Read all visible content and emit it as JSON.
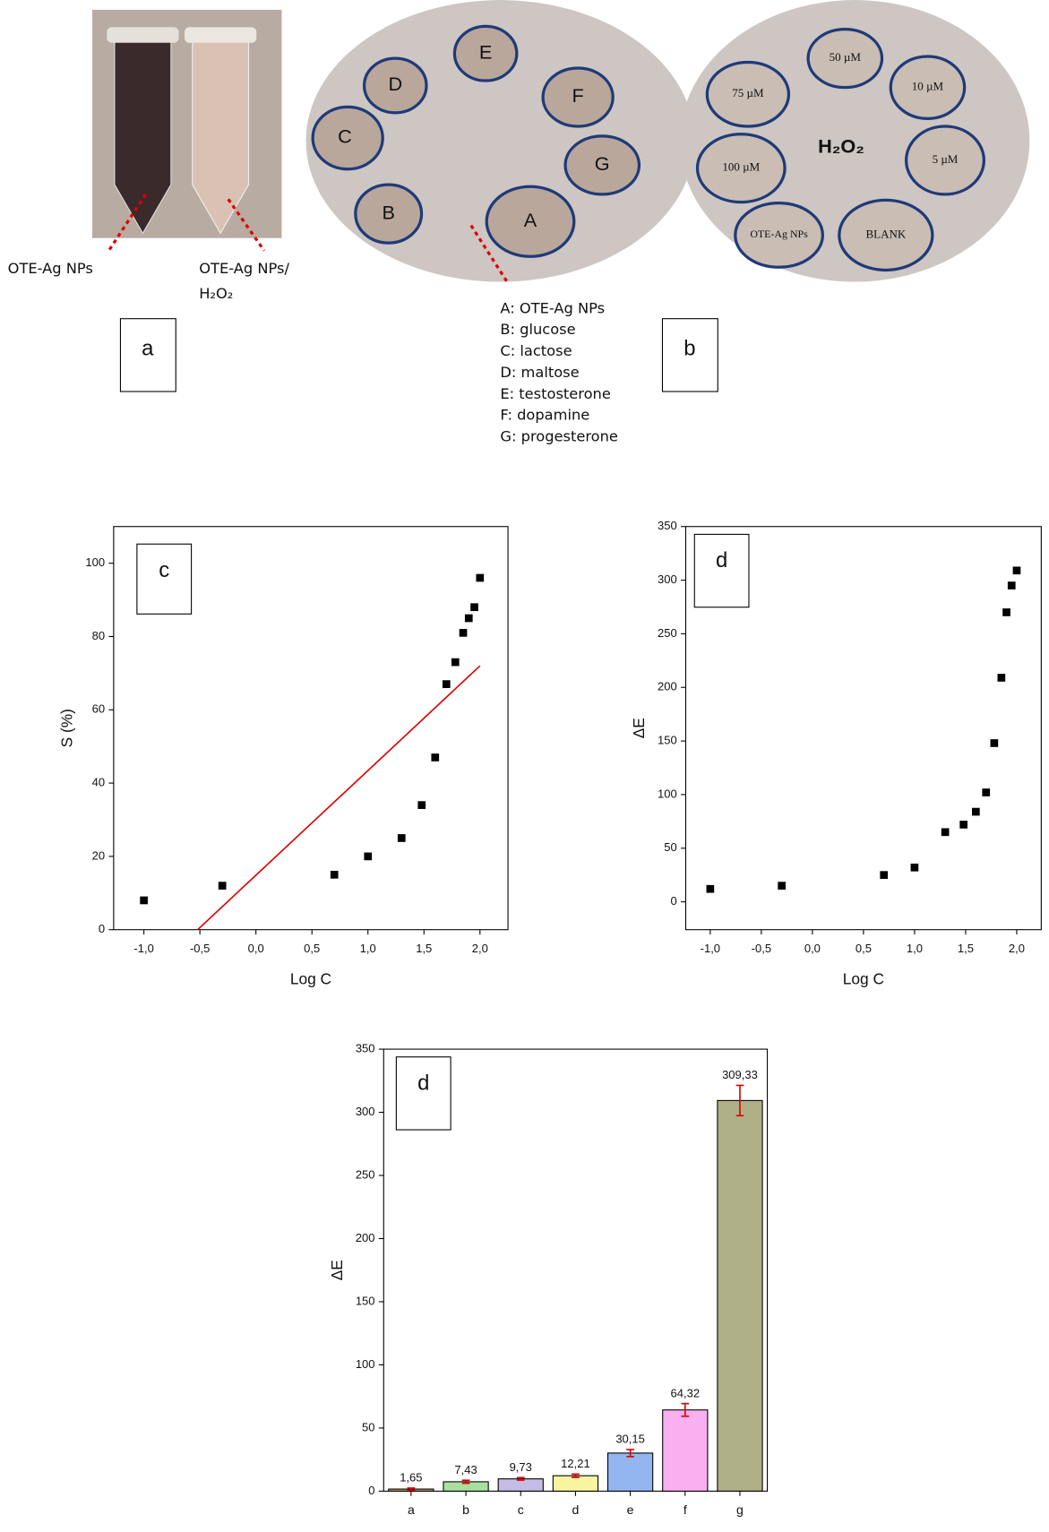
{
  "figure": {
    "tube_labels": [
      "OTE-Ag NPs",
      "OTE-Ag NPs/",
      "H₂O₂"
    ],
    "panel_a": "a",
    "panel_b": "b",
    "plate_labels": [
      "A",
      "B",
      "C",
      "D",
      "E",
      "F",
      "G"
    ],
    "plate2_labels": [
      "50 µM",
      "10 µM",
      "75 µM",
      "100 µM",
      "5 µM",
      "OTE-Ag NPs",
      "BLANK"
    ],
    "plate2_title": "H₂O₂",
    "legend": [
      "A: OTE-Ag NPs",
      "B: glucose",
      "C: lactose",
      "D: maltose",
      "E: testosterone",
      "F: dopamine",
      "G: progesterone"
    ]
  },
  "chart_data": [
    {
      "type": "scatter",
      "panel_label": "c",
      "x_label": "Log C",
      "y_label": "S (%)",
      "x": [
        -1,
        -0.3,
        0.7,
        1.0,
        1.3,
        1.48,
        1.6,
        1.7,
        1.78,
        1.85,
        1.9,
        1.95,
        2.0
      ],
      "values": [
        8,
        12,
        15,
        20,
        25,
        34,
        47,
        67,
        73,
        81,
        85,
        88,
        96
      ],
      "color": "#000000",
      "fit": {
        "x": [
          -0.52,
          2.0
        ],
        "values": [
          0,
          72
        ],
        "color": "#e00000"
      },
      "xlim": [
        -1.27,
        2.25
      ],
      "ylim": [
        0,
        110
      ],
      "xticks": [
        {
          "value": -1,
          "label": "-1,0"
        },
        {
          "value": -0.5,
          "label": "-0,5"
        },
        {
          "value": 0,
          "label": "0,0"
        },
        {
          "value": 0.5,
          "label": "0,5"
        },
        {
          "value": 1,
          "label": "1,0"
        },
        {
          "value": 1.5,
          "label": "1,5"
        },
        {
          "value": 2,
          "label": "2,0"
        }
      ],
      "yticks": [
        0,
        20,
        40,
        60,
        80,
        100
      ]
    },
    {
      "type": "scatter",
      "panel_label": "d",
      "x_label": "Log C",
      "y_label": "ΔE",
      "x": [
        -1,
        -0.3,
        0.7,
        1.0,
        1.3,
        1.48,
        1.6,
        1.7,
        1.78,
        1.85,
        1.9,
        1.95,
        2.0
      ],
      "values": [
        12,
        15,
        25,
        32,
        65,
        72,
        84,
        102,
        148,
        209,
        270,
        295,
        309
      ],
      "color": "#000000",
      "xlim": [
        -1.24,
        2.24
      ],
      "ylim": [
        -26,
        350
      ],
      "xticks": [
        {
          "value": -1,
          "label": "-1,0"
        },
        {
          "value": -0.5,
          "label": "-0,5"
        },
        {
          "value": 0,
          "label": "0,0"
        },
        {
          "value": 0.5,
          "label": "0,5"
        },
        {
          "value": 1,
          "label": "1,0"
        },
        {
          "value": 1.5,
          "label": "1,5"
        },
        {
          "value": 2,
          "label": "2,0"
        }
      ],
      "yticks": [
        0,
        50,
        100,
        150,
        200,
        250,
        300,
        350
      ]
    },
    {
      "type": "bar",
      "panel_label": "d",
      "y_label": "ΔE",
      "categories": [
        "a",
        "b",
        "c",
        "d",
        "e",
        "f",
        "g"
      ],
      "values": [
        1.65,
        7.43,
        9.73,
        12.21,
        30.15,
        64.32,
        309.33
      ],
      "value_labels": [
        "1,65",
        "7,43",
        "9,73",
        "12,21",
        "30,15",
        "64,32",
        "309,33"
      ],
      "errors": [
        0.8,
        1.2,
        1.0,
        1.3,
        2.8,
        5,
        12
      ],
      "colors": [
        "#c8a070",
        "#a8e0a0",
        "#c4bce4",
        "#f8f4a0",
        "#94b6f0",
        "#f8b0f0",
        "#b0b088"
      ],
      "error_color": "#e00000",
      "ylim": [
        0,
        350
      ],
      "yticks": [
        0,
        50,
        100,
        150,
        200,
        250,
        300,
        350
      ]
    }
  ]
}
